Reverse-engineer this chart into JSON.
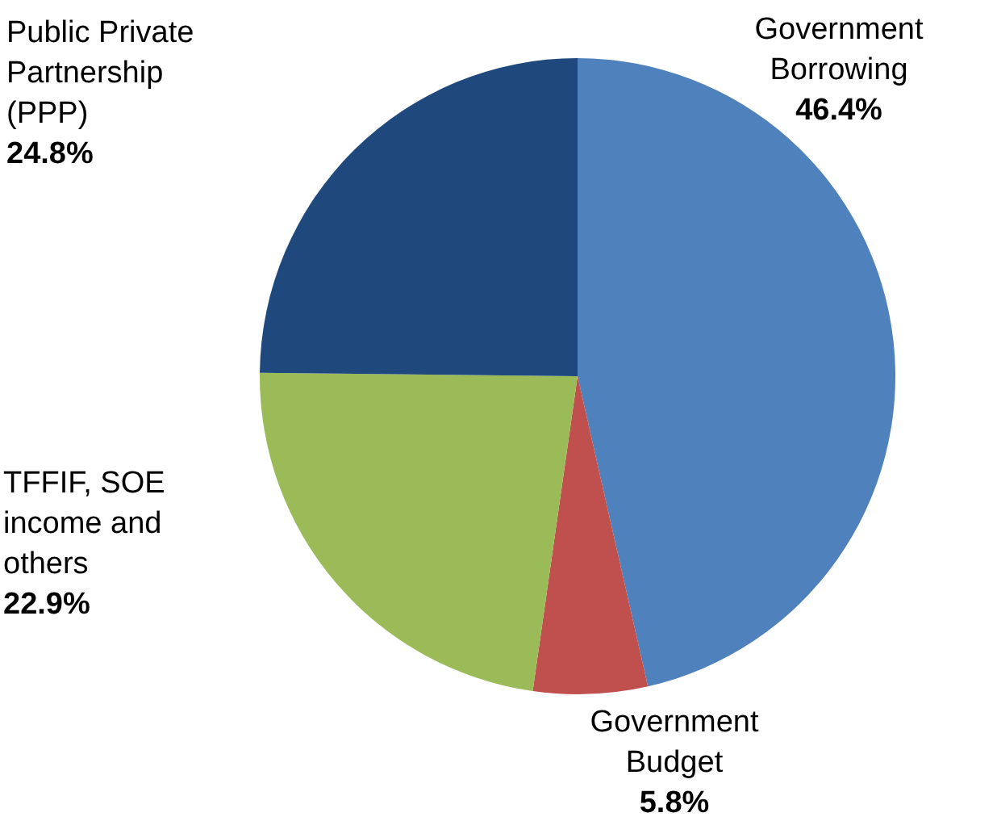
{
  "chart_data": {
    "type": "pie",
    "categories": [
      "Government Borrowing",
      "Government Budget",
      "TFFIF, SOE income and others",
      "Public Private Partnership (PPP)"
    ],
    "values": [
      46.4,
      5.8,
      22.9,
      24.8
    ],
    "colors": [
      "#4f81bd",
      "#c0504d",
      "#9bbb59",
      "#1f497d"
    ],
    "value_labels": [
      "46.4%",
      "5.8%",
      "22.9%",
      "24.8%"
    ]
  }
}
